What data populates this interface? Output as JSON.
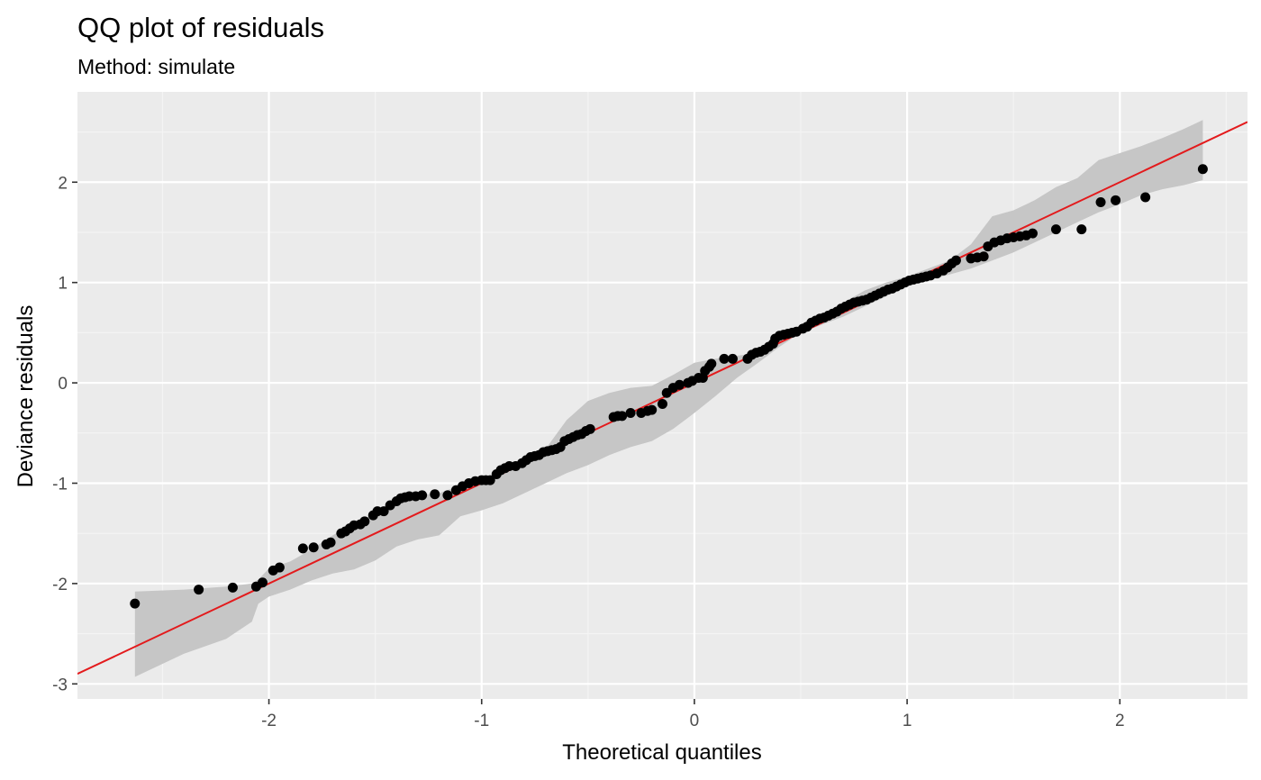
{
  "chart_data": {
    "type": "scatter",
    "title": "QQ plot of residuals",
    "subtitle": "Method: simulate",
    "xlabel": "Theoretical quantiles",
    "ylabel": "Deviance residuals",
    "xlim": [
      -2.9,
      2.6
    ],
    "ylim": [
      -3.15,
      2.9
    ],
    "x_ticks": [
      -2,
      -1,
      0,
      1,
      2
    ],
    "y_ticks": [
      -3,
      -2,
      -1,
      0,
      1,
      2
    ],
    "x_tick_labels": [
      "-2",
      "-1",
      "0",
      "1",
      "2"
    ],
    "y_tick_labels": [
      "-3",
      "-2",
      "-1",
      "0",
      "1",
      "2"
    ],
    "grid": true,
    "background_color": "#ebebeb",
    "reference_line": {
      "slope": 1.0,
      "intercept": 0.0,
      "color": "#e31a1c"
    },
    "band_color": "#c6c6c6",
    "point_color": "#000000",
    "band": [
      {
        "x": -2.63,
        "lo": -2.93,
        "hi": -2.08
      },
      {
        "x": -2.4,
        "lo": -2.7,
        "hi": -2.06
      },
      {
        "x": -2.2,
        "lo": -2.55,
        "hi": -2.03
      },
      {
        "x": -2.08,
        "lo": -2.38,
        "hi": -2.0
      },
      {
        "x": -2.05,
        "lo": -2.2,
        "hi": -1.96
      },
      {
        "x": -2.0,
        "lo": -2.13,
        "hi": -1.85
      },
      {
        "x": -1.9,
        "lo": -2.06,
        "hi": -1.78
      },
      {
        "x": -1.8,
        "lo": -1.97,
        "hi": -1.66
      },
      {
        "x": -1.7,
        "lo": -1.9,
        "hi": -1.52
      },
      {
        "x": -1.6,
        "lo": -1.86,
        "hi": -1.4
      },
      {
        "x": -1.5,
        "lo": -1.77,
        "hi": -1.3
      },
      {
        "x": -1.4,
        "lo": -1.63,
        "hi": -1.17
      },
      {
        "x": -1.3,
        "lo": -1.56,
        "hi": -1.12
      },
      {
        "x": -1.2,
        "lo": -1.52,
        "hi": -1.1
      },
      {
        "x": -1.1,
        "lo": -1.33,
        "hi": -1.02
      },
      {
        "x": -1.0,
        "lo": -1.27,
        "hi": -0.96
      },
      {
        "x": -0.9,
        "lo": -1.2,
        "hi": -0.88
      },
      {
        "x": -0.8,
        "lo": -1.1,
        "hi": -0.75
      },
      {
        "x": -0.7,
        "lo": -1.0,
        "hi": -0.66
      },
      {
        "x": -0.6,
        "lo": -0.9,
        "hi": -0.37
      },
      {
        "x": -0.5,
        "lo": -0.82,
        "hi": -0.18
      },
      {
        "x": -0.4,
        "lo": -0.72,
        "hi": -0.1
      },
      {
        "x": -0.3,
        "lo": -0.64,
        "hi": -0.05
      },
      {
        "x": -0.2,
        "lo": -0.58,
        "hi": -0.03
      },
      {
        "x": -0.1,
        "lo": -0.46,
        "hi": 0.08
      },
      {
        "x": 0.0,
        "lo": -0.3,
        "hi": 0.2
      },
      {
        "x": 0.1,
        "lo": -0.13,
        "hi": 0.24
      },
      {
        "x": 0.2,
        "lo": 0.05,
        "hi": 0.27
      },
      {
        "x": 0.3,
        "lo": 0.2,
        "hi": 0.3
      },
      {
        "x": 0.4,
        "lo": 0.36,
        "hi": 0.46
      },
      {
        "x": 0.5,
        "lo": 0.5,
        "hi": 0.58
      },
      {
        "x": 0.6,
        "lo": 0.58,
        "hi": 0.68
      },
      {
        "x": 0.7,
        "lo": 0.66,
        "hi": 0.8
      },
      {
        "x": 0.8,
        "lo": 0.76,
        "hi": 0.92
      },
      {
        "x": 0.9,
        "lo": 0.86,
        "hi": 1.0
      },
      {
        "x": 1.0,
        "lo": 0.96,
        "hi": 1.06
      },
      {
        "x": 1.1,
        "lo": 1.02,
        "hi": 1.14
      },
      {
        "x": 1.2,
        "lo": 1.08,
        "hi": 1.22
      },
      {
        "x": 1.3,
        "lo": 1.14,
        "hi": 1.38
      },
      {
        "x": 1.4,
        "lo": 1.22,
        "hi": 1.66
      },
      {
        "x": 1.5,
        "lo": 1.3,
        "hi": 1.72
      },
      {
        "x": 1.6,
        "lo": 1.4,
        "hi": 1.82
      },
      {
        "x": 1.7,
        "lo": 1.5,
        "hi": 1.95
      },
      {
        "x": 1.8,
        "lo": 1.6,
        "hi": 2.04
      },
      {
        "x": 1.9,
        "lo": 1.7,
        "hi": 2.22
      },
      {
        "x": 2.0,
        "lo": 1.78,
        "hi": 2.29
      },
      {
        "x": 2.1,
        "lo": 1.87,
        "hi": 2.36
      },
      {
        "x": 2.2,
        "lo": 1.93,
        "hi": 2.44
      },
      {
        "x": 2.3,
        "lo": 1.97,
        "hi": 2.53
      },
      {
        "x": 2.39,
        "lo": 2.02,
        "hi": 2.62
      }
    ],
    "points": [
      {
        "x": -2.63,
        "y": -2.2
      },
      {
        "x": -2.33,
        "y": -2.06
      },
      {
        "x": -2.17,
        "y": -2.04
      },
      {
        "x": -2.06,
        "y": -2.03
      },
      {
        "x": -2.03,
        "y": -1.99
      },
      {
        "x": -1.98,
        "y": -1.87
      },
      {
        "x": -1.95,
        "y": -1.84
      },
      {
        "x": -1.84,
        "y": -1.65
      },
      {
        "x": -1.79,
        "y": -1.64
      },
      {
        "x": -1.73,
        "y": -1.61
      },
      {
        "x": -1.71,
        "y": -1.59
      },
      {
        "x": -1.66,
        "y": -1.5
      },
      {
        "x": -1.64,
        "y": -1.48
      },
      {
        "x": -1.62,
        "y": -1.45
      },
      {
        "x": -1.6,
        "y": -1.42
      },
      {
        "x": -1.57,
        "y": -1.41
      },
      {
        "x": -1.55,
        "y": -1.38
      },
      {
        "x": -1.51,
        "y": -1.32
      },
      {
        "x": -1.49,
        "y": -1.28
      },
      {
        "x": -1.46,
        "y": -1.28
      },
      {
        "x": -1.43,
        "y": -1.22
      },
      {
        "x": -1.4,
        "y": -1.18
      },
      {
        "x": -1.38,
        "y": -1.15
      },
      {
        "x": -1.36,
        "y": -1.14
      },
      {
        "x": -1.34,
        "y": -1.13
      },
      {
        "x": -1.31,
        "y": -1.13
      },
      {
        "x": -1.28,
        "y": -1.12
      },
      {
        "x": -1.22,
        "y": -1.11
      },
      {
        "x": -1.16,
        "y": -1.12
      },
      {
        "x": -1.12,
        "y": -1.07
      },
      {
        "x": -1.09,
        "y": -1.03
      },
      {
        "x": -1.06,
        "y": -1.0
      },
      {
        "x": -1.03,
        "y": -0.98
      },
      {
        "x": -1.0,
        "y": -0.97
      },
      {
        "x": -0.98,
        "y": -0.97
      },
      {
        "x": -0.96,
        "y": -0.97
      },
      {
        "x": -0.93,
        "y": -0.91
      },
      {
        "x": -0.91,
        "y": -0.87
      },
      {
        "x": -0.89,
        "y": -0.85
      },
      {
        "x": -0.87,
        "y": -0.83
      },
      {
        "x": -0.84,
        "y": -0.83
      },
      {
        "x": -0.81,
        "y": -0.8
      },
      {
        "x": -0.79,
        "y": -0.77
      },
      {
        "x": -0.77,
        "y": -0.74
      },
      {
        "x": -0.75,
        "y": -0.73
      },
      {
        "x": -0.73,
        "y": -0.72
      },
      {
        "x": -0.71,
        "y": -0.69
      },
      {
        "x": -0.69,
        "y": -0.68
      },
      {
        "x": -0.67,
        "y": -0.67
      },
      {
        "x": -0.65,
        "y": -0.66
      },
      {
        "x": -0.63,
        "y": -0.64
      },
      {
        "x": -0.61,
        "y": -0.58
      },
      {
        "x": -0.59,
        "y": -0.56
      },
      {
        "x": -0.57,
        "y": -0.54
      },
      {
        "x": -0.55,
        "y": -0.52
      },
      {
        "x": -0.53,
        "y": -0.51
      },
      {
        "x": -0.51,
        "y": -0.48
      },
      {
        "x": -0.49,
        "y": -0.46
      },
      {
        "x": -0.38,
        "y": -0.34
      },
      {
        "x": -0.36,
        "y": -0.33
      },
      {
        "x": -0.34,
        "y": -0.33
      },
      {
        "x": -0.3,
        "y": -0.3
      },
      {
        "x": -0.25,
        "y": -0.3
      },
      {
        "x": -0.22,
        "y": -0.28
      },
      {
        "x": -0.2,
        "y": -0.27
      },
      {
        "x": -0.15,
        "y": -0.21
      },
      {
        "x": -0.13,
        "y": -0.1
      },
      {
        "x": -0.1,
        "y": -0.05
      },
      {
        "x": -0.07,
        "y": -0.02
      },
      {
        "x": -0.03,
        "y": 0.0
      },
      {
        "x": -0.01,
        "y": 0.02
      },
      {
        "x": 0.02,
        "y": 0.05
      },
      {
        "x": 0.04,
        "y": 0.05
      },
      {
        "x": 0.05,
        "y": 0.12
      },
      {
        "x": 0.07,
        "y": 0.16
      },
      {
        "x": 0.08,
        "y": 0.19
      },
      {
        "x": 0.14,
        "y": 0.24
      },
      {
        "x": 0.18,
        "y": 0.24
      },
      {
        "x": 0.25,
        "y": 0.24
      },
      {
        "x": 0.27,
        "y": 0.28
      },
      {
        "x": 0.29,
        "y": 0.3
      },
      {
        "x": 0.31,
        "y": 0.31
      },
      {
        "x": 0.33,
        "y": 0.33
      },
      {
        "x": 0.35,
        "y": 0.36
      },
      {
        "x": 0.37,
        "y": 0.39
      },
      {
        "x": 0.38,
        "y": 0.44
      },
      {
        "x": 0.4,
        "y": 0.47
      },
      {
        "x": 0.42,
        "y": 0.48
      },
      {
        "x": 0.44,
        "y": 0.49
      },
      {
        "x": 0.46,
        "y": 0.5
      },
      {
        "x": 0.48,
        "y": 0.51
      },
      {
        "x": 0.51,
        "y": 0.54
      },
      {
        "x": 0.53,
        "y": 0.56
      },
      {
        "x": 0.55,
        "y": 0.6
      },
      {
        "x": 0.57,
        "y": 0.62
      },
      {
        "x": 0.59,
        "y": 0.64
      },
      {
        "x": 0.61,
        "y": 0.65
      },
      {
        "x": 0.63,
        "y": 0.67
      },
      {
        "x": 0.65,
        "y": 0.69
      },
      {
        "x": 0.67,
        "y": 0.71
      },
      {
        "x": 0.69,
        "y": 0.74
      },
      {
        "x": 0.71,
        "y": 0.76
      },
      {
        "x": 0.73,
        "y": 0.78
      },
      {
        "x": 0.75,
        "y": 0.8
      },
      {
        "x": 0.77,
        "y": 0.81
      },
      {
        "x": 0.79,
        "y": 0.82
      },
      {
        "x": 0.81,
        "y": 0.83
      },
      {
        "x": 0.83,
        "y": 0.85
      },
      {
        "x": 0.85,
        "y": 0.87
      },
      {
        "x": 0.87,
        "y": 0.89
      },
      {
        "x": 0.89,
        "y": 0.91
      },
      {
        "x": 0.91,
        "y": 0.93
      },
      {
        "x": 0.93,
        "y": 0.94
      },
      {
        "x": 0.95,
        "y": 0.96
      },
      {
        "x": 0.97,
        "y": 0.98
      },
      {
        "x": 0.99,
        "y": 1.0
      },
      {
        "x": 1.01,
        "y": 1.02
      },
      {
        "x": 1.03,
        "y": 1.03
      },
      {
        "x": 1.05,
        "y": 1.04
      },
      {
        "x": 1.07,
        "y": 1.05
      },
      {
        "x": 1.09,
        "y": 1.06
      },
      {
        "x": 1.11,
        "y": 1.07
      },
      {
        "x": 1.14,
        "y": 1.09
      },
      {
        "x": 1.17,
        "y": 1.12
      },
      {
        "x": 1.19,
        "y": 1.15
      },
      {
        "x": 1.21,
        "y": 1.19
      },
      {
        "x": 1.23,
        "y": 1.22
      },
      {
        "x": 1.3,
        "y": 1.24
      },
      {
        "x": 1.33,
        "y": 1.25
      },
      {
        "x": 1.36,
        "y": 1.26
      },
      {
        "x": 1.38,
        "y": 1.36
      },
      {
        "x": 1.41,
        "y": 1.4
      },
      {
        "x": 1.44,
        "y": 1.42
      },
      {
        "x": 1.47,
        "y": 1.44
      },
      {
        "x": 1.5,
        "y": 1.45
      },
      {
        "x": 1.53,
        "y": 1.46
      },
      {
        "x": 1.56,
        "y": 1.47
      },
      {
        "x": 1.59,
        "y": 1.49
      },
      {
        "x": 1.7,
        "y": 1.53
      },
      {
        "x": 1.82,
        "y": 1.53
      },
      {
        "x": 1.91,
        "y": 1.8
      },
      {
        "x": 1.98,
        "y": 1.82
      },
      {
        "x": 2.12,
        "y": 1.85
      },
      {
        "x": 2.39,
        "y": 2.13
      }
    ]
  }
}
